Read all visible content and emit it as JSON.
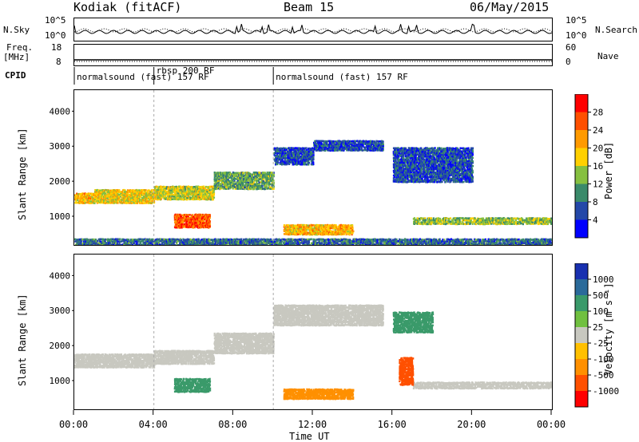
{
  "header": {
    "station": "Kodiak (fitACF)",
    "beam": "Beam 15",
    "date": "06/May/2015"
  },
  "status_labels": {
    "nsky": "N.Sky",
    "nsky_tick_top": "10^5",
    "nsky_tick_bottom": "10^0",
    "nsearch": "N.Search",
    "nsearch_tick_top": "10^5",
    "nsearch_tick_bottom": "10^0",
    "freq": "Freq.",
    "freq_unit": "[MHz]",
    "freq_tick_top": "18",
    "freq_tick_bottom": "8",
    "nave": "Nave",
    "nave_tick_top": "60",
    "nave_tick_bottom": "0",
    "cpid": "CPID"
  },
  "cpid_segments": [
    {
      "label": "normalsound (fast) 157 RF",
      "start_hour": 0.0
    },
    {
      "label": "rbsp 200 RF",
      "start_hour": 4.0
    },
    {
      "label": "normalsound (fast) 157 RF",
      "start_hour": 10.0
    }
  ],
  "xaxis": {
    "label": "Time UT",
    "ticks": [
      "00:00",
      "04:00",
      "08:00",
      "12:00",
      "16:00",
      "20:00",
      "00:00"
    ],
    "range_hours": [
      0,
      24
    ]
  },
  "power_panel": {
    "ylabel": "Slant Range [km]",
    "yticks": [
      "1000",
      "2000",
      "3000",
      "4000"
    ],
    "colorbar_label": "Power [dB]",
    "colorbar_ticks": [
      "4",
      "8",
      "12",
      "16",
      "20",
      "24",
      "28"
    ],
    "colors": [
      "#0000ff",
      "#2448a8",
      "#3a8a6a",
      "#86c040",
      "#ffd000",
      "#ff9a00",
      "#ff5000",
      "#ff0000"
    ]
  },
  "velocity_panel": {
    "ylabel": "Slant Range [km]",
    "yticks": [
      "1000",
      "2000",
      "3000",
      "4000"
    ],
    "colorbar_label": "Velocity [m s⁻¹]",
    "colorbar_ticks": [
      "1000",
      "500",
      "100",
      "25",
      "-25",
      "-100",
      "-500",
      "-1000"
    ],
    "colors": [
      "#1830b0",
      "#2a6a9a",
      "#3a9a6a",
      "#70c040",
      "#c8c8c0",
      "#ffc000",
      "#ff9000",
      "#ff5000",
      "#ff0000"
    ]
  },
  "chart_data": [
    {
      "type": "heatmap",
      "title": "Power",
      "xlabel": "Time UT",
      "ylabel": "Slant Range [km]",
      "xlim_hours": [
        0,
        24
      ],
      "ylim_km": [
        180,
        4600
      ],
      "value_label": "Power [dB]",
      "value_range": [
        0,
        32
      ],
      "echo_bands": [
        {
          "t0": 0.0,
          "t1": 1.0,
          "r0": 1400,
          "r1": 1700,
          "val": 20
        },
        {
          "t0": 1.0,
          "t1": 4.0,
          "r0": 1400,
          "r1": 1800,
          "val": 18
        },
        {
          "t0": 4.0,
          "t1": 7.0,
          "r0": 1500,
          "r1": 1900,
          "val": 16
        },
        {
          "t0": 7.0,
          "t1": 10.0,
          "r0": 1800,
          "r1": 2300,
          "val": 12
        },
        {
          "t0": 10.0,
          "t1": 12.0,
          "r0": 2500,
          "r1": 3000,
          "val": 6
        },
        {
          "t0": 12.0,
          "t1": 15.5,
          "r0": 2900,
          "r1": 3200,
          "val": 6
        },
        {
          "t0": 5.0,
          "t1": 6.8,
          "r0": 700,
          "r1": 1100,
          "val": 26
        },
        {
          "t0": 10.5,
          "t1": 14.0,
          "r0": 500,
          "r1": 800,
          "val": 20
        },
        {
          "t0": 16.0,
          "t1": 20.0,
          "r0": 2000,
          "r1": 3000,
          "val": 6
        },
        {
          "t0": 17.0,
          "t1": 24.0,
          "r0": 800,
          "r1": 1000,
          "val": 14
        },
        {
          "t0": 0.0,
          "t1": 24.0,
          "r0": 200,
          "r1": 400,
          "val": 8
        }
      ]
    },
    {
      "type": "heatmap",
      "title": "Velocity",
      "xlabel": "Time UT",
      "ylabel": "Slant Range [km]",
      "xlim_hours": [
        0,
        24
      ],
      "ylim_km": [
        180,
        4600
      ],
      "value_label": "Velocity [m s⁻¹]",
      "value_range": [
        -1000,
        1000
      ],
      "echo_bands": [
        {
          "t0": 0.0,
          "t1": 4.0,
          "r0": 1400,
          "r1": 1800,
          "val": 0
        },
        {
          "t0": 4.0,
          "t1": 7.0,
          "r0": 1500,
          "r1": 1900,
          "val": 0
        },
        {
          "t0": 7.0,
          "t1": 10.0,
          "r0": 1800,
          "r1": 2400,
          "val": 0
        },
        {
          "t0": 10.0,
          "t1": 15.5,
          "r0": 2600,
          "r1": 3200,
          "val": 0
        },
        {
          "t0": 5.0,
          "t1": 6.8,
          "r0": 700,
          "r1": 1100,
          "val": 300
        },
        {
          "t0": 10.5,
          "t1": 14.0,
          "r0": 500,
          "r1": 800,
          "val": -200
        },
        {
          "t0": 16.0,
          "t1": 18.0,
          "r0": 2400,
          "r1": 3000,
          "val": 150
        },
        {
          "t0": 17.0,
          "t1": 24.0,
          "r0": 800,
          "r1": 1000,
          "val": 0
        },
        {
          "t0": 16.3,
          "t1": 17.0,
          "r0": 900,
          "r1": 1700,
          "val": -700
        }
      ]
    }
  ]
}
